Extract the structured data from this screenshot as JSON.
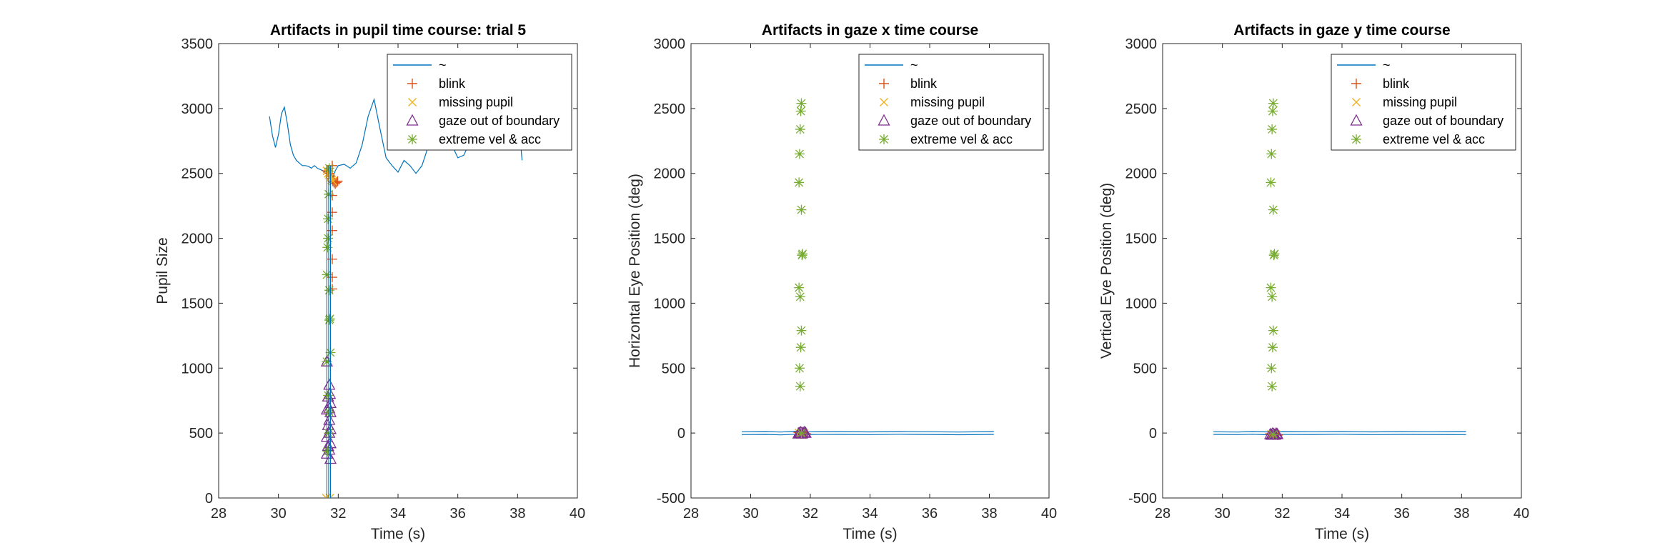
{
  "colors": {
    "trace": "#0072BD",
    "blink": "#D95319",
    "missing": "#EDB120",
    "boundary": "#7E2F8E",
    "extreme": "#77AC30"
  },
  "chart_data": [
    {
      "type": "line",
      "title": "Artifacts in pupil time course: trial 5",
      "xlabel": "Time (s)",
      "ylabel": "Pupil Size",
      "xlim": [
        28,
        40
      ],
      "ylim": [
        0,
        3500
      ],
      "xticks": [
        28,
        30,
        32,
        34,
        36,
        38,
        40
      ],
      "yticks": [
        0,
        500,
        1000,
        1500,
        2000,
        2500,
        3000,
        3500
      ],
      "legend_position": "top-right",
      "legend": [
        "~",
        "blink",
        "missing pupil",
        "gaze out of boundary",
        "extreme vel & acc"
      ],
      "series": [
        {
          "name": "~",
          "marker": "line",
          "x": [
            29.7,
            29.8,
            29.9,
            30.0,
            30.1,
            30.2,
            30.3,
            30.4,
            30.5,
            30.6,
            30.7,
            30.8,
            30.9,
            31.0,
            31.1,
            31.2,
            31.3,
            31.4,
            31.5,
            31.6,
            31.65,
            31.7,
            31.8,
            31.9,
            32.0,
            32.2,
            32.4,
            32.6,
            32.8,
            33.0,
            33.2,
            33.4,
            33.6,
            33.8,
            34.0,
            34.2,
            34.4,
            34.6,
            34.8,
            35.0,
            35.2,
            35.4,
            35.6,
            35.8,
            36.0,
            36.2,
            36.4,
            36.6,
            36.8,
            37.0,
            37.2,
            37.4,
            37.6,
            37.8,
            38.0,
            38.15
          ],
          "y": [
            2940,
            2790,
            2700,
            2800,
            2960,
            3010,
            2880,
            2720,
            2640,
            2600,
            2580,
            2560,
            2560,
            2555,
            2540,
            2560,
            2540,
            2530,
            2520,
            2510,
            2500,
            2480,
            2450,
            2520,
            2560,
            2570,
            2540,
            2580,
            2720,
            2940,
            3070,
            2840,
            2620,
            2560,
            2510,
            2600,
            2560,
            2500,
            2560,
            2700,
            2860,
            2930,
            2860,
            2720,
            2620,
            2640,
            2740,
            2860,
            2780,
            2700,
            2690,
            2760,
            2920,
            3110,
            3000,
            2600
          ]
        },
        {
          "name": "blink",
          "marker": "plus",
          "x": [
            31.62,
            31.66,
            31.7,
            31.74,
            31.78,
            31.82,
            31.86,
            31.9,
            31.94,
            31.98,
            31.8,
            31.8,
            31.8,
            31.8,
            31.8,
            31.8,
            31.8
          ],
          "y": [
            2520,
            2510,
            2500,
            2480,
            2460,
            2440,
            2430,
            2420,
            2430,
            2440,
            2200,
            2060,
            1840,
            1610,
            2330,
            2560,
            1700
          ]
        },
        {
          "name": "missing pupil",
          "marker": "x",
          "x": [
            31.62,
            31.66,
            31.7,
            31.74,
            31.78,
            31.82,
            31.6,
            31.72
          ],
          "y": [
            2520,
            2500,
            2490,
            2470,
            2450,
            2440,
            0,
            0
          ]
        },
        {
          "name": "gaze out of boundary",
          "marker": "triangle",
          "x": [
            31.62,
            31.7,
            31.72,
            31.66,
            31.74,
            31.7,
            31.62,
            31.74,
            31.7,
            31.66,
            31.74,
            31.7,
            31.62,
            31.74,
            31.66,
            31.7,
            31.62,
            31.74
          ],
          "y": [
            1050,
            870,
            800,
            780,
            730,
            690,
            680,
            660,
            600,
            560,
            530,
            500,
            470,
            420,
            400,
            370,
            340,
            300
          ]
        },
        {
          "name": "extreme vel & acc",
          "marker": "asterisk",
          "x": [
            31.7,
            31.68,
            31.66,
            31.64,
            31.62,
            31.7,
            31.72,
            31.74,
            31.62,
            31.66,
            31.7,
            31.68,
            31.64,
            31.66,
            31.7
          ],
          "y": [
            2540,
            2340,
            2150,
            1930,
            1720,
            1370,
            1380,
            1120,
            1050,
            790,
            660,
            500,
            360,
            2000,
            1600
          ]
        }
      ]
    },
    {
      "type": "line",
      "title": "Artifacts in gaze x time course",
      "xlabel": "Time (s)",
      "ylabel": "Horizontal Eye Position (deg)",
      "xlim": [
        28,
        40
      ],
      "ylim": [
        -500,
        3000
      ],
      "xticks": [
        28,
        30,
        32,
        34,
        36,
        38,
        40
      ],
      "yticks": [
        -500,
        0,
        500,
        1000,
        1500,
        2000,
        2500,
        3000
      ],
      "legend_position": "top-right",
      "legend": [
        "~",
        "blink",
        "missing pupil",
        "gaze out of boundary",
        "extreme vel & acc"
      ],
      "series": [
        {
          "name": "~",
          "marker": "line",
          "x": [
            29.7,
            30.5,
            31.0,
            31.5,
            31.7,
            32.0,
            33.0,
            34.0,
            35.0,
            36.0,
            37.0,
            38.15
          ],
          "y": [
            10,
            12,
            8,
            14,
            5,
            10,
            11,
            9,
            12,
            10,
            8,
            12
          ]
        },
        {
          "name": "~",
          "marker": "line",
          "x": [
            29.7,
            30.5,
            31.0,
            31.5,
            31.7,
            32.0,
            33.0,
            34.0,
            35.0,
            36.0,
            37.0,
            38.15
          ],
          "y": [
            -12,
            -10,
            -14,
            -9,
            -5,
            -11,
            -10,
            -12,
            -9,
            -11,
            -13,
            -10
          ]
        },
        {
          "name": "blink",
          "marker": "plus",
          "x": [
            31.6,
            31.65,
            31.7,
            31.75,
            31.8,
            31.85
          ],
          "y": [
            5,
            0,
            -5,
            5,
            0,
            -5
          ]
        },
        {
          "name": "missing pupil",
          "marker": "x",
          "x": [
            31.62,
            31.7,
            31.78
          ],
          "y": [
            0,
            0,
            0
          ]
        },
        {
          "name": "gaze out of boundary",
          "marker": "triangle",
          "x": [
            31.6,
            31.64,
            31.68,
            31.72,
            31.76,
            31.8,
            31.84
          ],
          "y": [
            -5,
            0,
            5,
            -5,
            0,
            5,
            0
          ]
        },
        {
          "name": "extreme vel & acc",
          "marker": "asterisk",
          "x": [
            31.7,
            31.68,
            31.66,
            31.64,
            31.62,
            31.7,
            31.72,
            31.74,
            31.62,
            31.66,
            31.7,
            31.68,
            31.64,
            31.66,
            31.7
          ],
          "y": [
            2540,
            2480,
            2340,
            2150,
            1930,
            1720,
            1370,
            1380,
            1120,
            1050,
            790,
            660,
            500,
            360,
            0
          ]
        }
      ]
    },
    {
      "type": "line",
      "title": "Artifacts in gaze y time course",
      "xlabel": "Time (s)",
      "ylabel": "Vertical Eye Position (deg)",
      "xlim": [
        28,
        40
      ],
      "ylim": [
        -500,
        3000
      ],
      "xticks": [
        28,
        30,
        32,
        34,
        36,
        38,
        40
      ],
      "yticks": [
        -500,
        0,
        500,
        1000,
        1500,
        2000,
        2500,
        3000
      ],
      "legend_position": "top-right",
      "legend": [
        "~",
        "blink",
        "missing pupil",
        "gaze out of boundary",
        "extreme vel & acc"
      ],
      "series": [
        {
          "name": "~",
          "marker": "line",
          "x": [
            29.7,
            30.5,
            31.0,
            31.5,
            31.7,
            32.0,
            33.0,
            34.0,
            35.0,
            36.0,
            37.0,
            38.15
          ],
          "y": [
            10,
            8,
            12,
            9,
            5,
            11,
            10,
            12,
            9,
            11,
            10,
            12
          ]
        },
        {
          "name": "~",
          "marker": "line",
          "x": [
            29.7,
            30.5,
            31.0,
            31.5,
            31.7,
            32.0,
            33.0,
            34.0,
            35.0,
            36.0,
            37.0,
            38.15
          ],
          "y": [
            -10,
            -12,
            -9,
            -13,
            -5,
            -10,
            -11,
            -9,
            -12,
            -10,
            -11,
            -12
          ]
        },
        {
          "name": "blink",
          "marker": "plus",
          "x": [
            31.6,
            31.65,
            31.7,
            31.75,
            31.8,
            31.85
          ],
          "y": [
            -5,
            -10,
            -15,
            -5,
            -10,
            -15
          ]
        },
        {
          "name": "missing pupil",
          "marker": "x",
          "x": [
            31.62,
            31.7,
            31.78
          ],
          "y": [
            -10,
            -10,
            -10
          ]
        },
        {
          "name": "gaze out of boundary",
          "marker": "triangle",
          "x": [
            31.6,
            31.64,
            31.68,
            31.72,
            31.76,
            31.8,
            31.84
          ],
          "y": [
            -10,
            -15,
            -5,
            -10,
            -15,
            -5,
            -10
          ]
        },
        {
          "name": "extreme vel & acc",
          "marker": "asterisk",
          "x": [
            31.7,
            31.68,
            31.66,
            31.64,
            31.62,
            31.7,
            31.72,
            31.74,
            31.62,
            31.66,
            31.7,
            31.68,
            31.64,
            31.66,
            31.7
          ],
          "y": [
            2540,
            2480,
            2340,
            2150,
            1930,
            1720,
            1370,
            1380,
            1120,
            1050,
            790,
            660,
            500,
            360,
            -10
          ]
        }
      ]
    }
  ]
}
